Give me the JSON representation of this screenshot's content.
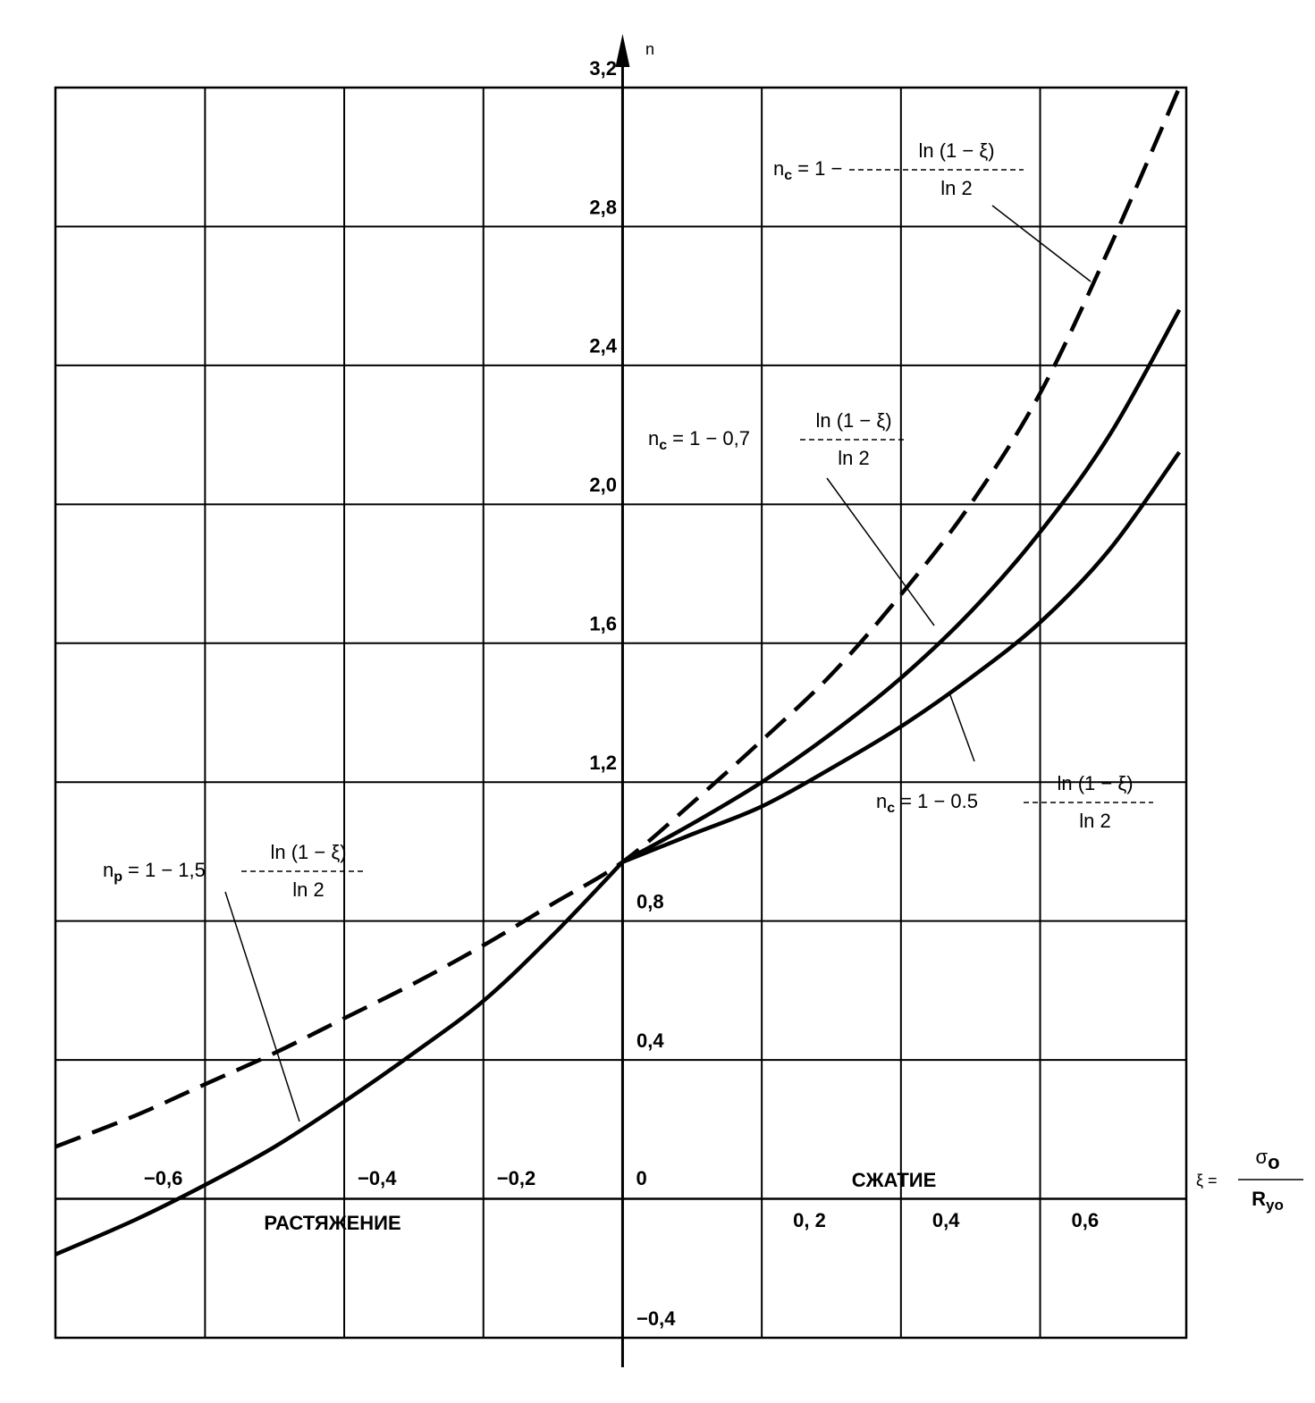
{
  "chart_data": {
    "type": "line",
    "y_axis_label": "n",
    "x_axis_label": {
      "lhs": "ξ =",
      "num": "σ",
      "num_sub": "o",
      "den": "R",
      "den_sub": "yo"
    },
    "annotations": [
      "РАСТЯЖЕНИЕ",
      "СЖАТИЕ"
    ],
    "x": [
      -0.815,
      -0.7,
      -0.6,
      -0.5,
      -0.4,
      -0.3,
      -0.2,
      -0.1,
      0,
      0.1,
      0.2,
      0.3,
      0.4,
      0.5,
      0.6,
      0.7,
      0.8
    ],
    "series": [
      {
        "label": {
          "n": "n",
          "sub": "c",
          "eq": "= 1 −",
          "num": "ln (1 − ξ)",
          "den": "ln 2"
        },
        "color": "#000000",
        "dashed": true,
        "values": [
          0.15,
          0.24,
          0.33,
          0.42,
          0.52,
          0.62,
          0.73,
          0.85,
          0.97,
          1.14,
          1.32,
          1.51,
          1.74,
          2.0,
          2.32,
          2.74,
          3.2
        ]
      },
      {
        "label": {
          "n": "n",
          "sub": "c",
          "eq": "= 1 − 0,7",
          "num": "ln (1 − ξ)",
          "den": "ln 2"
        },
        "color": "#000000",
        "dashed": false,
        "values": [
          null,
          null,
          null,
          null,
          null,
          null,
          null,
          null,
          0.97,
          1.08,
          1.2,
          1.34,
          1.5,
          1.69,
          1.92,
          2.2,
          2.56
        ]
      },
      {
        "label": {
          "n": "n",
          "sub": "c",
          "eq": "= 1 − 0.5",
          "num": "ln (1 − ξ)",
          "den": "ln 2"
        },
        "color": "#000000",
        "dashed": false,
        "values": [
          null,
          null,
          null,
          null,
          null,
          null,
          null,
          null,
          0.97,
          1.05,
          1.13,
          1.24,
          1.36,
          1.5,
          1.66,
          1.87,
          2.15
        ]
      },
      {
        "label": {
          "n": "n",
          "sub": "p",
          "eq": "= 1 − 1,5",
          "num": "ln (1 − ξ)",
          "den": "ln 2"
        },
        "color": "#000000",
        "dashed": false,
        "values": [
          -0.16,
          -0.06,
          0.04,
          0.15,
          0.28,
          0.42,
          0.57,
          0.76,
          0.97,
          null,
          null,
          null,
          null,
          null,
          null,
          null,
          null
        ]
      }
    ],
    "xlim": [
      -0.815,
      0.81
    ],
    "ylim": [
      -0.4,
      3.2
    ],
    "xticks": [
      {
        "value": -0.6,
        "label": "−0,6"
      },
      {
        "value": -0.4,
        "label": "−0,4"
      },
      {
        "value": -0.2,
        "label": "−0,2"
      },
      0,
      {
        "value": 0.2,
        "label": "0, 2"
      },
      {
        "value": 0.4,
        "label": "0,4"
      },
      {
        "value": 0.6,
        "label": "0,6"
      }
    ],
    "yticks": [
      {
        "value": -0.4,
        "label": "−0,4"
      },
      {
        "value": 0.4,
        "label": "0,4"
      },
      {
        "value": 0.8,
        "label": "0,8"
      },
      {
        "value": 1.2,
        "label": "1,2"
      },
      {
        "value": 1.6,
        "label": "1,6"
      },
      {
        "value": 2.0,
        "label": "2,0"
      },
      {
        "value": 2.4,
        "label": "2,4"
      },
      {
        "value": 2.8,
        "label": "2,8"
      },
      {
        "value": 3.2,
        "label": "3,2"
      }
    ],
    "grid": true
  }
}
